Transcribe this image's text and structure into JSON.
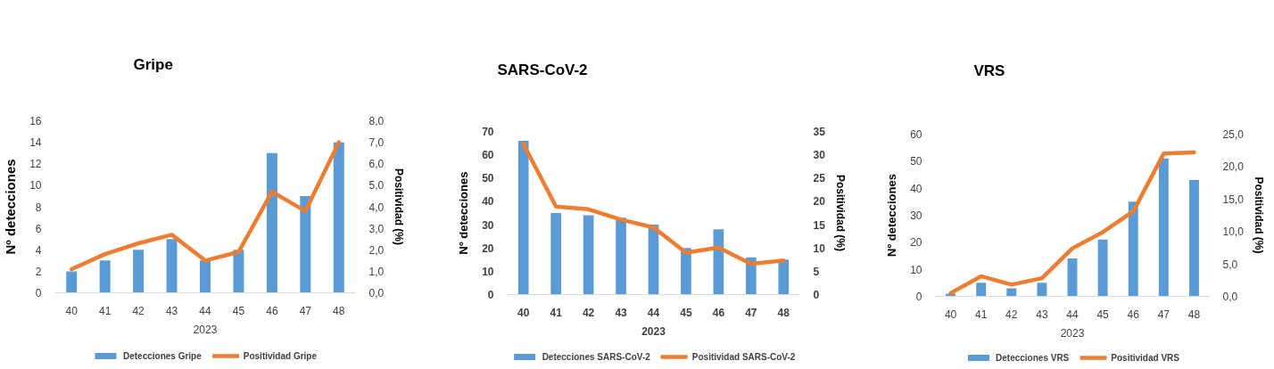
{
  "chart_data": [
    {
      "type": "bar",
      "title": "Gripe",
      "categories": [
        "40",
        "41",
        "42",
        "43",
        "44",
        "45",
        "46",
        "47",
        "48"
      ],
      "xlabel": "2023",
      "ylabel": "Nº detecciones",
      "y2label": "Positividad (%)",
      "ylim": [
        0,
        16
      ],
      "yticks": [
        0,
        2,
        4,
        6,
        8,
        10,
        12,
        14,
        16
      ],
      "y2lim": [
        0,
        8
      ],
      "y2ticks": [
        {
          "value": 0,
          "label": "0,0"
        },
        {
          "value": 1,
          "label": "1,0"
        },
        {
          "value": 2,
          "label": "2,0"
        },
        {
          "value": 3,
          "label": "3,0"
        },
        {
          "value": 4,
          "label": "4,0"
        },
        {
          "value": 5,
          "label": "5,0"
        },
        {
          "value": 6,
          "label": "6,0"
        },
        {
          "value": 7,
          "label": "7,0"
        },
        {
          "value": 8,
          "label": "8,0"
        }
      ],
      "series": [
        {
          "name": "Detecciones Gripe",
          "color": "#5b9bd5",
          "values": [
            2,
            3,
            4,
            5,
            3,
            4,
            13,
            9,
            14
          ]
        },
        {
          "name": "Positividad Gripe",
          "type": "line",
          "axis": "y2",
          "color": "#ed7d31",
          "values": [
            1.1,
            1.8,
            2.3,
            2.7,
            1.5,
            1.9,
            4.7,
            3.8,
            7.0
          ]
        }
      ],
      "legend": "bottom"
    },
    {
      "type": "bar",
      "title": "SARS-CoV-2",
      "categories": [
        "40",
        "41",
        "42",
        "43",
        "44",
        "45",
        "46",
        "47",
        "48"
      ],
      "xlabel": "2023",
      "ylabel": "Nº detecciones",
      "y2label": "Positividad (%)",
      "ylim": [
        0,
        70
      ],
      "yticks": [
        0,
        10,
        20,
        30,
        40,
        50,
        60,
        70
      ],
      "y2lim": [
        0,
        35
      ],
      "y2ticks": [
        0,
        5,
        10,
        15,
        20,
        25,
        30,
        35
      ],
      "series": [
        {
          "name": "Detecciones SARS-CoV-2",
          "color": "#5b9bd5",
          "values": [
            66,
            35,
            34,
            33,
            30,
            20,
            28,
            16,
            15
          ]
        },
        {
          "name": "Positividad SARS-CoV-2",
          "type": "line",
          "axis": "y2",
          "color": "#ed7d31",
          "values": [
            32.3,
            18.9,
            18.3,
            16.1,
            14.4,
            9.0,
            10.1,
            6.6,
            7.3
          ]
        }
      ],
      "legend": "bottom"
    },
    {
      "type": "bar",
      "title": "VRS",
      "categories": [
        "40",
        "41",
        "42",
        "43",
        "44",
        "45",
        "46",
        "47",
        "48"
      ],
      "xlabel": "2023",
      "ylabel": "Nº detecciones",
      "y2label": "Positividad (%)",
      "ylim": [
        0,
        60
      ],
      "yticks": [
        0,
        10,
        20,
        30,
        40,
        50,
        60
      ],
      "y2lim": [
        0,
        25
      ],
      "y2ticks": [
        {
          "value": 0,
          "label": "0,0"
        },
        {
          "value": 5,
          "label": "5,0"
        },
        {
          "value": 10,
          "label": "10,0"
        },
        {
          "value": 15,
          "label": "15,0"
        },
        {
          "value": 20,
          "label": "20,0"
        },
        {
          "value": 25,
          "label": "25,0"
        }
      ],
      "series": [
        {
          "name": "Detecciones VRS",
          "color": "#5b9bd5",
          "values": [
            1,
            5,
            3,
            5,
            14,
            21,
            35,
            51,
            43
          ]
        },
        {
          "name": "Positividad VRS",
          "type": "line",
          "axis": "y2",
          "color": "#ed7d31",
          "values": [
            0.5,
            3.1,
            1.8,
            2.8,
            7.4,
            9.9,
            13.1,
            22.0,
            22.2
          ]
        }
      ],
      "legend": "bottom"
    }
  ]
}
